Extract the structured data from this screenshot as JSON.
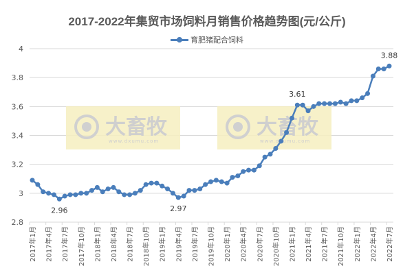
{
  "chart_data": {
    "type": "line",
    "title": "2017-2022年集贸市场饲料月销售价格趋势图(元/公斤)",
    "xlabel": "",
    "ylabel": "",
    "ylim": [
      2.8,
      4
    ],
    "yticks": [
      "2.8",
      "3",
      "3.2",
      "3.4",
      "3.6",
      "3.8",
      "4"
    ],
    "grid": true,
    "legend_position": "top",
    "series": [
      {
        "name": "育肥猪配合饲料",
        "color": "#4a7ebb",
        "values": [
          3.09,
          3.06,
          3.01,
          3.0,
          2.99,
          2.96,
          2.98,
          2.99,
          2.99,
          3.0,
          3.0,
          3.02,
          3.04,
          3.01,
          3.03,
          3.04,
          3.01,
          2.99,
          2.99,
          3.0,
          3.02,
          3.06,
          3.07,
          3.07,
          3.05,
          3.03,
          3.0,
          2.97,
          2.98,
          3.02,
          3.02,
          3.03,
          3.06,
          3.08,
          3.09,
          3.08,
          3.07,
          3.11,
          3.12,
          3.15,
          3.16,
          3.16,
          3.19,
          3.25,
          3.27,
          3.31,
          3.36,
          3.42,
          3.52,
          3.61,
          3.61,
          3.57,
          3.6,
          3.62,
          3.62,
          3.62,
          3.62,
          3.63,
          3.62,
          3.64,
          3.64,
          3.66,
          3.69,
          3.81,
          3.86,
          3.86,
          3.88
        ]
      }
    ],
    "x_tick_labels": [
      "2017年1月",
      "2017年4月",
      "2017年7月",
      "2017年10月",
      "2018年1月",
      "2018年4月",
      "2018年7月",
      "2018年10月",
      "2019年1月",
      "2019年4月",
      "2019年7月",
      "2019年10月",
      "2020年1月",
      "2020年4月",
      "2020年7月",
      "2020年10月",
      "2021年1月",
      "2021年4月",
      "2021年7月",
      "2021年10月",
      "2022年1月",
      "2022年4月",
      "2022年7月"
    ],
    "annotations": [
      {
        "index": 5,
        "text": "2.96",
        "position": "below"
      },
      {
        "index": 27,
        "text": "2.97",
        "position": "below"
      },
      {
        "index": 49,
        "text": "3.61",
        "position": "above"
      },
      {
        "index": 66,
        "text": "3.88",
        "position": "above"
      }
    ]
  },
  "watermark": {
    "brand": "大畜牧",
    "url": "www.dxumu.com"
  }
}
